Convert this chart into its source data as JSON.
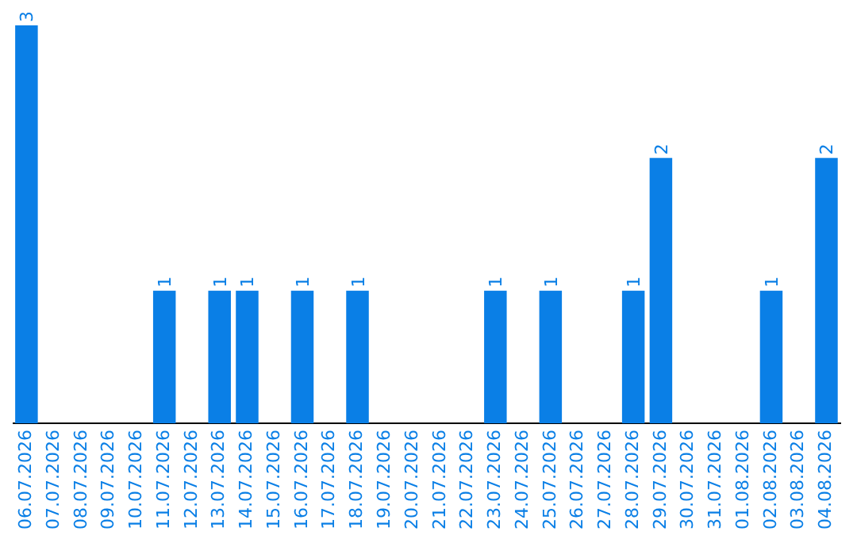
{
  "chart_data": {
    "type": "bar",
    "categories": [
      "06.07.2026",
      "07.07.2026",
      "08.07.2026",
      "09.07.2026",
      "10.07.2026",
      "11.07.2026",
      "12.07.2026",
      "13.07.2026",
      "14.07.2026",
      "15.07.2026",
      "16.07.2026",
      "17.07.2026",
      "18.07.2026",
      "19.07.2026",
      "20.07.2026",
      "21.07.2026",
      "22.07.2026",
      "23.07.2026",
      "24.07.2026",
      "25.07.2026",
      "26.07.2026",
      "27.07.2026",
      "28.07.2026",
      "29.07.2026",
      "30.07.2026",
      "31.07.2026",
      "01.08.2026",
      "02.08.2026",
      "03.08.2026",
      "04.08.2026"
    ],
    "values": [
      3,
      0,
      0,
      0,
      0,
      1,
      0,
      1,
      1,
      0,
      1,
      0,
      1,
      0,
      0,
      0,
      0,
      1,
      0,
      1,
      0,
      0,
      1,
      2,
      0,
      0,
      0,
      1,
      0,
      2
    ],
    "value_labels": [
      "3",
      null,
      null,
      null,
      null,
      "1",
      null,
      "1",
      "1",
      null,
      "1",
      null,
      "1",
      null,
      null,
      null,
      null,
      "1",
      null,
      "1",
      null,
      null,
      "1",
      "2",
      null,
      null,
      null,
      "1",
      null,
      "2"
    ],
    "color": "#0a7fe6",
    "grid": false,
    "legend": false
  }
}
